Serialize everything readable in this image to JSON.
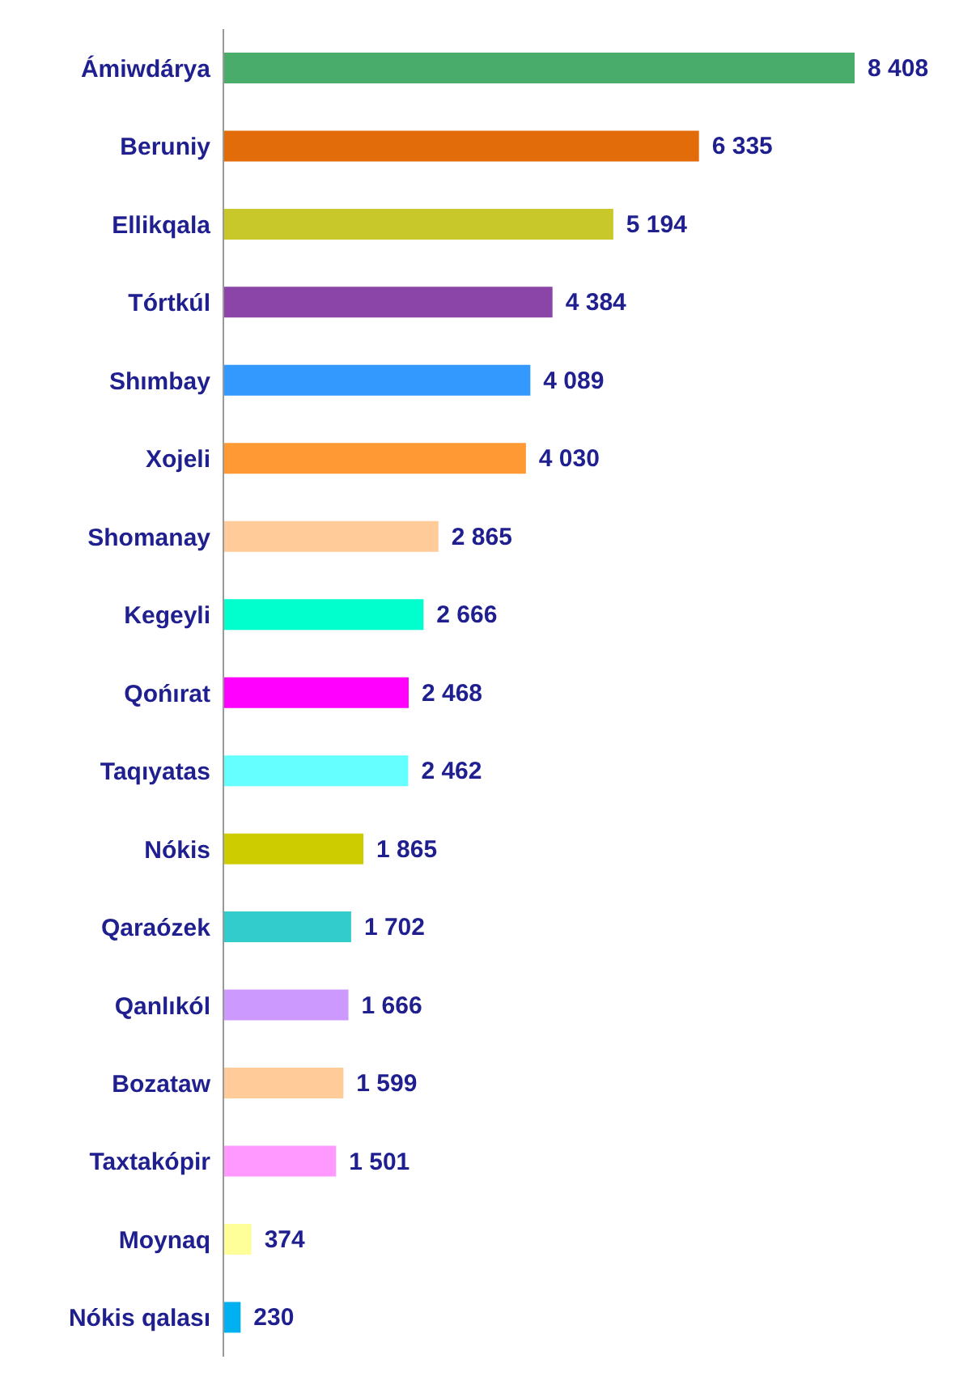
{
  "chart_data": {
    "type": "bar",
    "orientation": "horizontal",
    "categories": [
      "Ámiwdárya",
      "Beruniy",
      "Ellikqala",
      "Tórtkúl",
      "Shımbay",
      "Xojeli",
      "Shomanay",
      "Kegeyli",
      "Qońırat",
      "Taqıyatas",
      "Nókis",
      "Qaraózek",
      "Qanlıkól",
      "Bozataw",
      "Taxtakópir",
      "Moynaq",
      "Nókis qalası"
    ],
    "values": [
      8408,
      6335,
      5194,
      4384,
      4089,
      4030,
      2865,
      2666,
      2468,
      2462,
      1865,
      1702,
      1666,
      1599,
      1501,
      374,
      230
    ],
    "value_labels": [
      "8 408",
      "6 335",
      "5 194",
      "4 384",
      "4 089",
      "4 030",
      "2 865",
      "2 666",
      "2 468",
      "2 462",
      "1 865",
      "1 702",
      "1 666",
      "1 599",
      "1 501",
      "374",
      "230"
    ],
    "colors": [
      "#4aac6a",
      "#e36c0a",
      "#c8c82a",
      "#8b45a8",
      "#3399ff",
      "#ff9933",
      "#ffcc99",
      "#00ffcc",
      "#ff00ff",
      "#66ffff",
      "#cccc00",
      "#33cccc",
      "#cc99ff",
      "#ffcc99",
      "#ff99ff",
      "#ffff99",
      "#00b0f0"
    ]
  }
}
